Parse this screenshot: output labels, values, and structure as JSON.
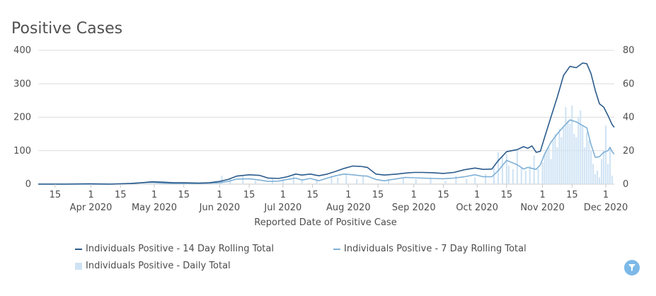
{
  "title": "Positive Cases",
  "colors": {
    "line14": "#2b5b8c",
    "line7": "#7fb0d6",
    "bars": "#cfe3f4",
    "grid": "#dcdcdc",
    "filter": "#7cb9e8"
  },
  "filter_icon": "funnel-icon",
  "chart_data": {
    "type": "line",
    "title": "Positive Cases",
    "xlabel": "Reported Date of Positive Case",
    "x_range": [
      "2020-03-07",
      "2020-12-05"
    ],
    "x_tick_labels": [
      {
        "date": "2020-03-15",
        "day": "15",
        "month": ""
      },
      {
        "date": "2020-04-01",
        "day": "1",
        "month": "Apr 2020"
      },
      {
        "date": "2020-04-15",
        "day": "15",
        "month": ""
      },
      {
        "date": "2020-05-01",
        "day": "1",
        "month": "May 2020"
      },
      {
        "date": "2020-05-15",
        "day": "15",
        "month": ""
      },
      {
        "date": "2020-06-01",
        "day": "1",
        "month": "Jun 2020"
      },
      {
        "date": "2020-06-15",
        "day": "15",
        "month": ""
      },
      {
        "date": "2020-07-01",
        "day": "1",
        "month": "Jul 2020"
      },
      {
        "date": "2020-07-15",
        "day": "15",
        "month": ""
      },
      {
        "date": "2020-08-01",
        "day": "1",
        "month": "Aug 2020"
      },
      {
        "date": "2020-08-15",
        "day": "15",
        "month": ""
      },
      {
        "date": "2020-09-01",
        "day": "1",
        "month": "Sep 2020"
      },
      {
        "date": "2020-09-15",
        "day": "15",
        "month": ""
      },
      {
        "date": "2020-10-01",
        "day": "1",
        "month": "Oct 2020"
      },
      {
        "date": "2020-10-15",
        "day": "15",
        "month": ""
      },
      {
        "date": "2020-11-01",
        "day": "1",
        "month": "Nov 2020"
      },
      {
        "date": "2020-11-15",
        "day": "15",
        "month": ""
      },
      {
        "date": "2020-12-01",
        "day": "1",
        "month": "Dec 2020"
      }
    ],
    "y_left": {
      "range": [
        0,
        400
      ],
      "ticks": [
        0,
        100,
        200,
        300,
        400
      ]
    },
    "y_right": {
      "range": [
        0,
        80
      ],
      "ticks": [
        0,
        20,
        40,
        60,
        80
      ]
    },
    "grid": true,
    "legend_position": "bottom",
    "series": [
      {
        "name": "Individuals Positive - 14 Day Rolling Total",
        "type": "line",
        "axis": "left",
        "color": "#2b5b8c",
        "points": [
          [
            "2020-03-07",
            0
          ],
          [
            "2020-03-20",
            0
          ],
          [
            "2020-03-31",
            1
          ],
          [
            "2020-04-10",
            0
          ],
          [
            "2020-04-20",
            2
          ],
          [
            "2020-04-25",
            4
          ],
          [
            "2020-04-30",
            7
          ],
          [
            "2020-05-05",
            6
          ],
          [
            "2020-05-10",
            4
          ],
          [
            "2020-05-15",
            4
          ],
          [
            "2020-05-22",
            3
          ],
          [
            "2020-05-27",
            4
          ],
          [
            "2020-06-01",
            8
          ],
          [
            "2020-06-05",
            14
          ],
          [
            "2020-06-09",
            24
          ],
          [
            "2020-06-15",
            28
          ],
          [
            "2020-06-20",
            26
          ],
          [
            "2020-06-24",
            18
          ],
          [
            "2020-06-29",
            17
          ],
          [
            "2020-07-03",
            22
          ],
          [
            "2020-07-07",
            30
          ],
          [
            "2020-07-10",
            27
          ],
          [
            "2020-07-14",
            30
          ],
          [
            "2020-07-18",
            25
          ],
          [
            "2020-07-22",
            30
          ],
          [
            "2020-07-26",
            38
          ],
          [
            "2020-07-30",
            47
          ],
          [
            "2020-08-03",
            54
          ],
          [
            "2020-08-07",
            53
          ],
          [
            "2020-08-10",
            50
          ],
          [
            "2020-08-14",
            30
          ],
          [
            "2020-08-18",
            27
          ],
          [
            "2020-08-24",
            30
          ],
          [
            "2020-08-28",
            33
          ],
          [
            "2020-09-01",
            35
          ],
          [
            "2020-09-05",
            35
          ],
          [
            "2020-09-10",
            34
          ],
          [
            "2020-09-15",
            32
          ],
          [
            "2020-09-20",
            35
          ],
          [
            "2020-09-25",
            43
          ],
          [
            "2020-09-30",
            48
          ],
          [
            "2020-10-04",
            44
          ],
          [
            "2020-10-08",
            45
          ],
          [
            "2020-10-11",
            70
          ],
          [
            "2020-10-15",
            97
          ],
          [
            "2020-10-20",
            103
          ],
          [
            "2020-10-23",
            112
          ],
          [
            "2020-10-25",
            107
          ],
          [
            "2020-10-27",
            114
          ],
          [
            "2020-10-29",
            95
          ],
          [
            "2020-10-31",
            98
          ],
          [
            "2020-11-02",
            140
          ],
          [
            "2020-11-05",
            200
          ],
          [
            "2020-11-08",
            260
          ],
          [
            "2020-11-11",
            325
          ],
          [
            "2020-11-14",
            352
          ],
          [
            "2020-11-17",
            348
          ],
          [
            "2020-11-20",
            362
          ],
          [
            "2020-11-22",
            360
          ],
          [
            "2020-11-24",
            330
          ],
          [
            "2020-11-26",
            280
          ],
          [
            "2020-11-28",
            240
          ],
          [
            "2020-11-30",
            230
          ],
          [
            "2020-12-02",
            205
          ],
          [
            "2020-12-04",
            178
          ],
          [
            "2020-12-05",
            170
          ]
        ]
      },
      {
        "name": "Individuals Positive - 7 Day Rolling Total",
        "type": "line",
        "axis": "left",
        "color": "#7fb0d6",
        "points": [
          [
            "2020-03-07",
            0
          ],
          [
            "2020-03-20",
            0
          ],
          [
            "2020-03-31",
            0
          ],
          [
            "2020-04-10",
            0
          ],
          [
            "2020-04-20",
            2
          ],
          [
            "2020-04-25",
            4
          ],
          [
            "2020-04-30",
            5
          ],
          [
            "2020-05-05",
            3
          ],
          [
            "2020-05-10",
            2
          ],
          [
            "2020-05-15",
            2
          ],
          [
            "2020-05-22",
            2
          ],
          [
            "2020-05-27",
            3
          ],
          [
            "2020-06-01",
            4
          ],
          [
            "2020-06-05",
            8
          ],
          [
            "2020-06-09",
            15
          ],
          [
            "2020-06-15",
            16
          ],
          [
            "2020-06-20",
            12
          ],
          [
            "2020-06-24",
            8
          ],
          [
            "2020-06-29",
            9
          ],
          [
            "2020-07-03",
            14
          ],
          [
            "2020-07-07",
            18
          ],
          [
            "2020-07-10",
            12
          ],
          [
            "2020-07-14",
            17
          ],
          [
            "2020-07-18",
            10
          ],
          [
            "2020-07-22",
            18
          ],
          [
            "2020-07-26",
            25
          ],
          [
            "2020-07-30",
            30
          ],
          [
            "2020-08-03",
            28
          ],
          [
            "2020-08-07",
            25
          ],
          [
            "2020-08-10",
            24
          ],
          [
            "2020-08-14",
            14
          ],
          [
            "2020-08-18",
            10
          ],
          [
            "2020-08-24",
            16
          ],
          [
            "2020-08-28",
            20
          ],
          [
            "2020-09-01",
            19
          ],
          [
            "2020-09-05",
            18
          ],
          [
            "2020-09-10",
            17
          ],
          [
            "2020-09-15",
            16
          ],
          [
            "2020-09-20",
            18
          ],
          [
            "2020-09-25",
            22
          ],
          [
            "2020-09-30",
            28
          ],
          [
            "2020-10-04",
            22
          ],
          [
            "2020-10-08",
            22
          ],
          [
            "2020-10-11",
            40
          ],
          [
            "2020-10-15",
            71
          ],
          [
            "2020-10-20",
            58
          ],
          [
            "2020-10-23",
            45
          ],
          [
            "2020-10-25",
            50
          ],
          [
            "2020-10-27",
            47
          ],
          [
            "2020-10-29",
            44
          ],
          [
            "2020-10-31",
            58
          ],
          [
            "2020-11-02",
            90
          ],
          [
            "2020-11-05",
            125
          ],
          [
            "2020-11-08",
            150
          ],
          [
            "2020-11-11",
            172
          ],
          [
            "2020-11-14",
            192
          ],
          [
            "2020-11-17",
            186
          ],
          [
            "2020-11-20",
            175
          ],
          [
            "2020-11-22",
            168
          ],
          [
            "2020-11-24",
            118
          ],
          [
            "2020-11-26",
            80
          ],
          [
            "2020-11-28",
            82
          ],
          [
            "2020-11-30",
            95
          ],
          [
            "2020-12-02",
            100
          ],
          [
            "2020-12-03",
            110
          ],
          [
            "2020-12-04",
            97
          ],
          [
            "2020-12-05",
            90
          ]
        ]
      },
      {
        "name": "Individuals Positive - Daily Total",
        "type": "bar",
        "axis": "right",
        "color": "#cfe3f4",
        "points": [
          [
            "2020-06-02",
            5
          ],
          [
            "2020-06-06",
            3
          ],
          [
            "2020-06-12",
            5
          ],
          [
            "2020-06-18",
            2
          ],
          [
            "2020-06-26",
            3
          ],
          [
            "2020-07-01",
            3
          ],
          [
            "2020-07-06",
            5
          ],
          [
            "2020-07-10",
            2
          ],
          [
            "2020-07-17",
            3
          ],
          [
            "2020-07-24",
            5
          ],
          [
            "2020-07-27",
            4
          ],
          [
            "2020-07-31",
            6
          ],
          [
            "2020-08-05",
            3
          ],
          [
            "2020-08-08",
            5
          ],
          [
            "2020-08-20",
            3
          ],
          [
            "2020-08-27",
            4
          ],
          [
            "2020-09-02",
            3
          ],
          [
            "2020-09-09",
            4
          ],
          [
            "2020-09-16",
            2
          ],
          [
            "2020-09-21",
            5
          ],
          [
            "2020-09-26",
            3
          ],
          [
            "2020-09-30",
            4
          ],
          [
            "2020-10-05",
            6
          ],
          [
            "2020-10-09",
            10
          ],
          [
            "2020-10-11",
            19
          ],
          [
            "2020-10-13",
            17
          ],
          [
            "2020-10-15",
            18
          ],
          [
            "2020-10-16",
            11
          ],
          [
            "2020-10-18",
            9
          ],
          [
            "2020-10-20",
            21
          ],
          [
            "2020-10-22",
            10
          ],
          [
            "2020-10-24",
            8
          ],
          [
            "2020-10-26",
            11
          ],
          [
            "2020-10-28",
            17
          ],
          [
            "2020-10-30",
            9
          ],
          [
            "2020-11-01",
            13
          ],
          [
            "2020-11-02",
            18
          ],
          [
            "2020-11-03",
            20
          ],
          [
            "2020-11-04",
            22
          ],
          [
            "2020-11-05",
            15
          ],
          [
            "2020-11-06",
            26
          ],
          [
            "2020-11-07",
            30
          ],
          [
            "2020-11-08",
            22
          ],
          [
            "2020-11-09",
            33
          ],
          [
            "2020-11-10",
            28
          ],
          [
            "2020-11-11",
            34
          ],
          [
            "2020-11-12",
            46
          ],
          [
            "2020-11-13",
            38
          ],
          [
            "2020-11-14",
            36
          ],
          [
            "2020-11-15",
            47
          ],
          [
            "2020-11-16",
            30
          ],
          [
            "2020-11-17",
            28
          ],
          [
            "2020-11-18",
            40
          ],
          [
            "2020-11-19",
            44
          ],
          [
            "2020-11-20",
            35
          ],
          [
            "2020-11-21",
            22
          ],
          [
            "2020-11-22",
            31
          ],
          [
            "2020-11-23",
            26
          ],
          [
            "2020-11-24",
            20
          ],
          [
            "2020-11-25",
            12
          ],
          [
            "2020-11-26",
            6
          ],
          [
            "2020-11-27",
            8
          ],
          [
            "2020-11-28",
            4
          ],
          [
            "2020-11-29",
            15
          ],
          [
            "2020-11-30",
            20
          ],
          [
            "2020-12-01",
            35
          ],
          [
            "2020-12-02",
            12
          ],
          [
            "2020-12-03",
            22
          ],
          [
            "2020-12-04",
            5
          ]
        ]
      }
    ]
  }
}
